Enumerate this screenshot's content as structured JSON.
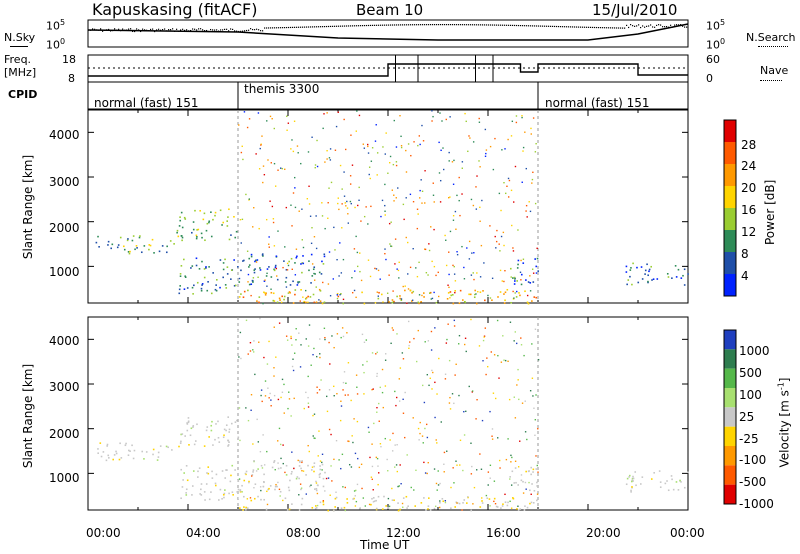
{
  "header": {
    "station": "Kapuskasing (fitACF)",
    "beam": "Beam 10",
    "date": "15/Jul/2010"
  },
  "noise_panel": {
    "left_label": "N.Sky",
    "right_label": "N.Search",
    "left_ticks": [
      "10^5",
      "10^0"
    ],
    "right_ticks": [
      "10^5",
      "10^0"
    ]
  },
  "freq_panel": {
    "left_label_1": "Freq.",
    "left_label_2": "[MHz]",
    "left_ticks": [
      "18",
      "8"
    ],
    "right_ticks": [
      "60",
      "0"
    ],
    "right_label": "Nave"
  },
  "cpid": {
    "label": "CPID",
    "segments": [
      {
        "name": "normal (fast) 151",
        "start_hour": 0,
        "end_hour": 6
      },
      {
        "name": "themis 3300",
        "start_hour": 6,
        "end_hour": 18
      },
      {
        "name": "normal (fast) 151",
        "start_hour": 18,
        "end_hour": 24
      }
    ]
  },
  "power_colorbar": {
    "label": "Power [dB]",
    "ticks": [
      "28",
      "24",
      "20",
      "16",
      "12",
      "8",
      "4"
    ],
    "colors": [
      "#e00000",
      "#ff5a00",
      "#ff9900",
      "#ffd400",
      "#9acd32",
      "#2e8b57",
      "#1f4fa8",
      "#0022ff"
    ]
  },
  "velocity_colorbar": {
    "label": "Velocity [m s",
    "label_sup": "-1",
    "label_close": "]",
    "ticks": [
      "1000",
      "500",
      "100",
      "25",
      "-25",
      "-100",
      "-500",
      "-1000"
    ],
    "colors": [
      "#1f3fbf",
      "#2e7d4f",
      "#55b84a",
      "#a8e070",
      "#c8c8c8",
      "#ffd400",
      "#ff9900",
      "#ff5a00",
      "#e00000"
    ]
  },
  "axes": {
    "ylabel": "Slant Range [km]",
    "yticks": [
      "4000",
      "3000",
      "2000",
      "1000"
    ],
    "xlabel": "Time UT",
    "xticks": [
      "00:00",
      "04:00",
      "08:00",
      "12:00",
      "16:00",
      "20:00",
      "00:00"
    ]
  },
  "chart_data": [
    {
      "type": "heatmap",
      "name": "Power",
      "xlabel": "Time UT",
      "ylabel": "Slant Range [km]",
      "xlim": [
        0,
        24
      ],
      "ylim": [
        180,
        4500
      ],
      "color_label": "Power [dB]",
      "color_range": [
        0,
        30
      ],
      "regions": [
        {
          "t0": 0.3,
          "t1": 3.5,
          "r0": 1300,
          "r1": 1700,
          "level": 10
        },
        {
          "t0": 3.5,
          "t1": 6.0,
          "r0": 1600,
          "r1": 2300,
          "level": 12
        },
        {
          "t0": 3.6,
          "t1": 6.0,
          "r0": 400,
          "r1": 1200,
          "level": 8
        },
        {
          "t0": 6.0,
          "t1": 9.5,
          "r0": 600,
          "r1": 1300,
          "level": 6
        },
        {
          "t0": 6.0,
          "t1": 18.0,
          "r0": 180,
          "r1": 500,
          "level": 18
        },
        {
          "t0": 16.8,
          "t1": 18.0,
          "r0": 600,
          "r1": 1200,
          "level": 6
        },
        {
          "t0": 21.5,
          "t1": 24.0,
          "r0": 600,
          "r1": 1100,
          "level": 6
        }
      ]
    },
    {
      "type": "heatmap",
      "name": "Velocity",
      "xlabel": "Time UT",
      "ylabel": "Slant Range [km]",
      "xlim": [
        0,
        24
      ],
      "ylim": [
        180,
        4500
      ],
      "color_label": "Velocity [m s-1]",
      "color_range": [
        -1000,
        1000
      ],
      "regions": [
        {
          "t0": 0.3,
          "t1": 3.5,
          "r0": 1300,
          "r1": 1700,
          "level": 0
        },
        {
          "t0": 3.5,
          "t1": 6.0,
          "r0": 1600,
          "r1": 2300,
          "level": 0
        },
        {
          "t0": 3.6,
          "t1": 6.0,
          "r0": 400,
          "r1": 1200,
          "level": 0
        },
        {
          "t0": 6.0,
          "t1": 9.5,
          "r0": 600,
          "r1": 1300,
          "level": 0
        },
        {
          "t0": 6.0,
          "t1": 18.0,
          "r0": 180,
          "r1": 500,
          "level": -80
        },
        {
          "t0": 16.8,
          "t1": 18.0,
          "r0": 600,
          "r1": 1200,
          "level": 0
        },
        {
          "t0": 21.5,
          "t1": 24.0,
          "r0": 600,
          "r1": 1100,
          "level": 0
        }
      ]
    }
  ]
}
